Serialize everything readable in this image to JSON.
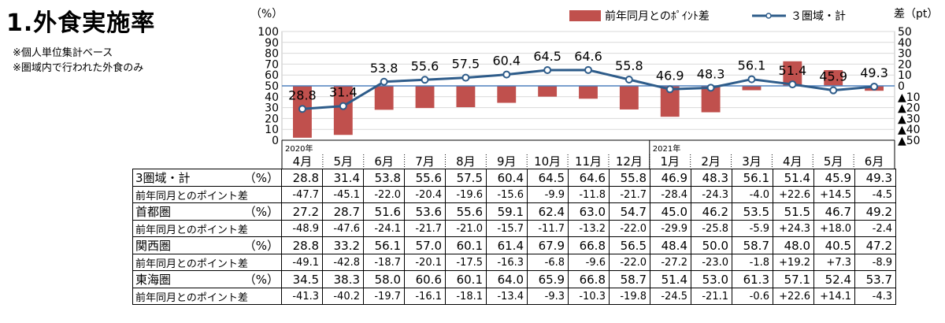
{
  "title": "1.外食実施率",
  "notes": [
    "※個人単位集計ベース",
    "※圏域内で行われた外食のみ"
  ],
  "chart_data": {
    "type": "bar+line",
    "left_axis_label": "（%）",
    "right_axis_label": "差（pt）",
    "left_axis_ticks": [
      "0",
      "10",
      "20",
      "30",
      "40",
      "50",
      "60",
      "70",
      "80",
      "90",
      "100"
    ],
    "right_axis_ticks": [
      "▲50",
      "▲40",
      "▲30",
      "▲20",
      "▲10",
      "0",
      "10",
      "20",
      "30",
      "40",
      "50"
    ],
    "ylim_left": [
      0,
      100
    ],
    "ylim_right": [
      -50,
      50
    ],
    "year_labels": [
      {
        "label": "2020年",
        "index": 0
      },
      {
        "label": "2021年",
        "index": 9
      }
    ],
    "categories": [
      "4月",
      "5月",
      "6月",
      "7月",
      "8月",
      "9月",
      "10月",
      "11月",
      "12月",
      "1月",
      "2月",
      "3月",
      "4月",
      "5月",
      "6月"
    ],
    "bar_series": {
      "name": "前年同月とのﾎﾟｲﾝﾄ差",
      "color": "#c0504d",
      "values": [
        -47.7,
        -45.1,
        -22.0,
        -20.4,
        -19.6,
        -15.6,
        -9.9,
        -11.8,
        -21.7,
        -28.4,
        -24.3,
        -4.0,
        22.6,
        14.5,
        -4.5
      ]
    },
    "line_series": {
      "name": "３圏域・計",
      "color": "#2e5c8a",
      "values": [
        28.8,
        31.4,
        53.8,
        55.6,
        57.5,
        60.4,
        64.5,
        64.6,
        55.8,
        46.9,
        48.3,
        56.1,
        51.4,
        45.9,
        49.3
      ],
      "labels": [
        "28.8",
        "31.4",
        "53.8",
        "55.6",
        "57.5",
        "60.4",
        "64.5",
        "64.6",
        "55.8",
        "46.9",
        "48.3",
        "56.1",
        "51.4",
        "45.9",
        "49.3"
      ]
    },
    "reference_line": {
      "value": 50,
      "color": "#4f81bd"
    }
  },
  "table": {
    "rows": [
      {
        "label": "3圏域・計",
        "unit": "（%）",
        "kind": "val",
        "cells": [
          "28.8",
          "31.4",
          "53.8",
          "55.6",
          "57.5",
          "60.4",
          "64.5",
          "64.6",
          "55.8",
          "46.9",
          "48.3",
          "56.1",
          "51.4",
          "45.9",
          "49.3"
        ]
      },
      {
        "label": "前年同月とのポイント差",
        "unit": "",
        "kind": "sub",
        "cells": [
          "-47.7",
          "-45.1",
          "-22.0",
          "-20.4",
          "-19.6",
          "-15.6",
          "-9.9",
          "-11.8",
          "-21.7",
          "-28.4",
          "-24.3",
          "-4.0",
          "+22.6",
          "+14.5",
          "-4.5"
        ]
      },
      {
        "label": "首都圏",
        "unit": "（%）",
        "kind": "val",
        "cells": [
          "27.2",
          "28.7",
          "51.6",
          "53.6",
          "55.6",
          "59.1",
          "62.4",
          "63.0",
          "54.7",
          "45.0",
          "46.2",
          "53.5",
          "51.5",
          "46.7",
          "49.2"
        ]
      },
      {
        "label": "前年同月とのポイント差",
        "unit": "",
        "kind": "sub",
        "cells": [
          "-48.9",
          "-47.6",
          "-24.1",
          "-21.7",
          "-21.0",
          "-15.7",
          "-11.7",
          "-13.2",
          "-22.0",
          "-29.9",
          "-25.8",
          "-5.9",
          "+24.3",
          "+18.0",
          "-2.4"
        ]
      },
      {
        "label": "関西圏",
        "unit": "（%）",
        "kind": "val",
        "cells": [
          "28.8",
          "33.2",
          "56.1",
          "57.0",
          "60.1",
          "61.4",
          "67.9",
          "66.8",
          "56.5",
          "48.4",
          "50.0",
          "58.7",
          "48.0",
          "40.5",
          "47.2"
        ]
      },
      {
        "label": "前年同月とのポイント差",
        "unit": "",
        "kind": "sub",
        "cells": [
          "-49.1",
          "-42.8",
          "-18.7",
          "-20.1",
          "-17.5",
          "-16.3",
          "-6.8",
          "-9.6",
          "-22.0",
          "-27.2",
          "-23.0",
          "-1.8",
          "+19.2",
          "+7.3",
          "-8.9"
        ]
      },
      {
        "label": "東海圏",
        "unit": "（%）",
        "kind": "val",
        "cells": [
          "34.5",
          "38.3",
          "58.0",
          "60.6",
          "60.1",
          "64.0",
          "65.9",
          "66.8",
          "58.7",
          "51.4",
          "53.0",
          "61.3",
          "57.1",
          "52.4",
          "53.7"
        ]
      },
      {
        "label": "前年同月とのポイント差",
        "unit": "",
        "kind": "sub",
        "cells": [
          "-41.3",
          "-40.2",
          "-19.7",
          "-16.1",
          "-18.1",
          "-13.4",
          "-9.3",
          "-10.3",
          "-19.8",
          "-24.5",
          "-21.1",
          "-0.6",
          "+22.6",
          "+14.1",
          "-4.3"
        ]
      }
    ]
  }
}
